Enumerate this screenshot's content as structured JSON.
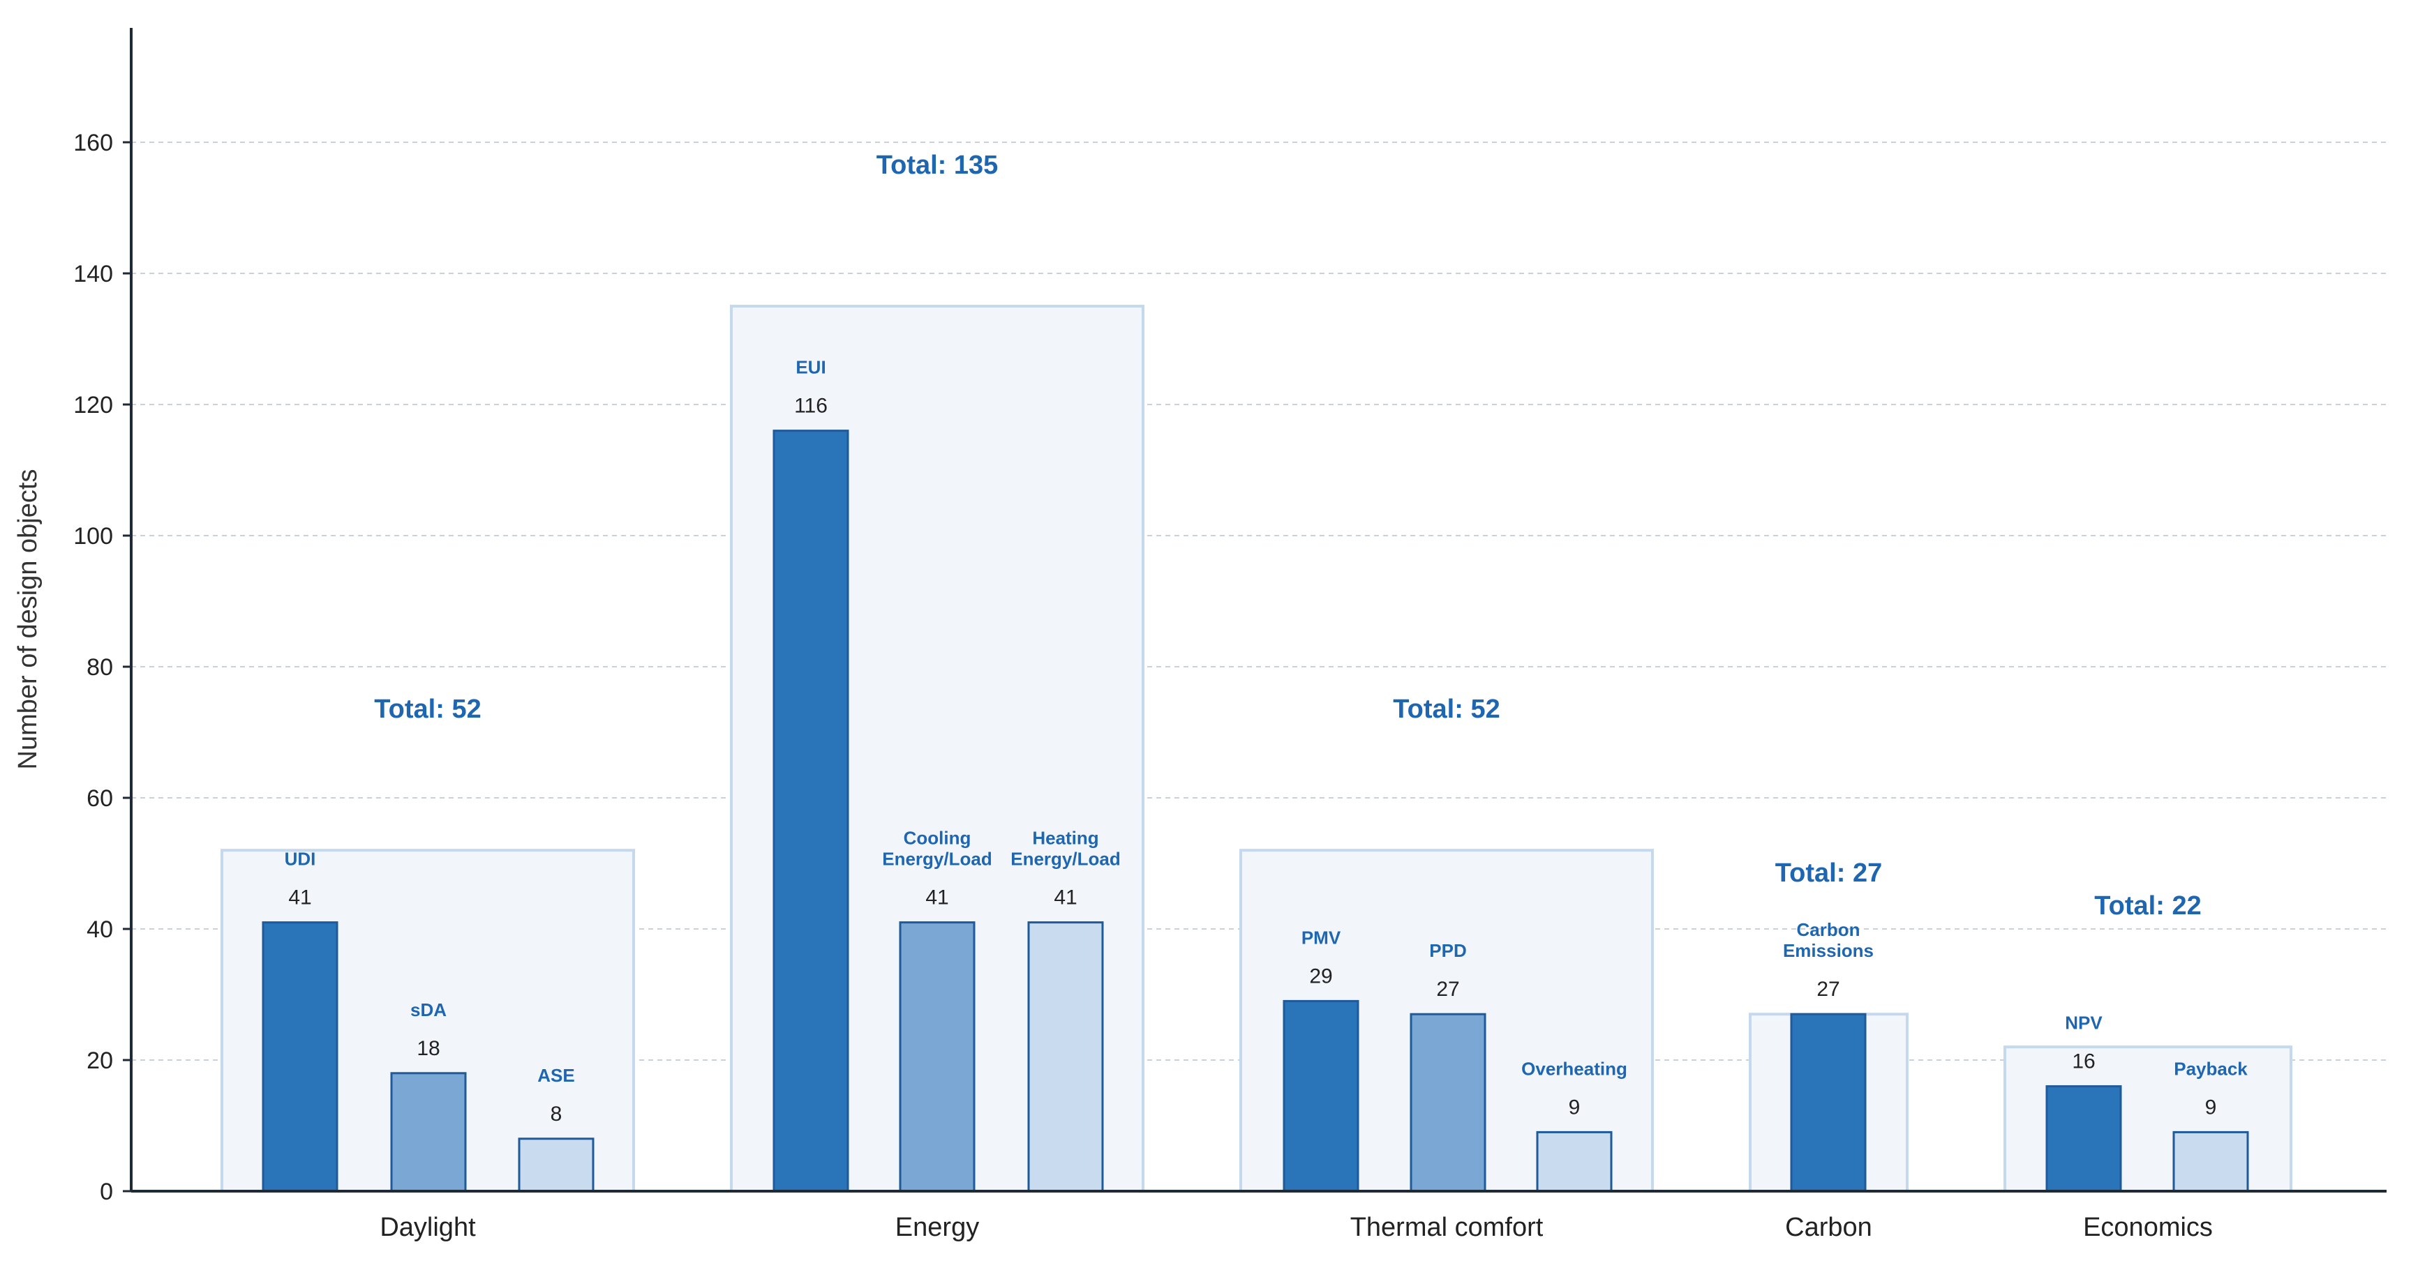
{
  "colors": {
    "accent": "#1f66b0",
    "bar_dark": "#2a74ba",
    "bar_mid": "#7ba7d4",
    "bar_light": "#c8dbef",
    "bar_stroke": "#1f5a9a",
    "group_fill": "#f2f6fb",
    "group_stroke": "#c5d9ee",
    "grid": "#c9d1da",
    "axis": "#1e2a36"
  },
  "chart_data": {
    "type": "bar",
    "title": "",
    "xlabel": "",
    "ylabel": "Number of design objects",
    "ylim": [
      0,
      180
    ],
    "yticks": [
      0,
      20,
      40,
      60,
      80,
      100,
      120,
      140,
      160
    ],
    "grid": true,
    "groups": [
      {
        "category": "Daylight",
        "total_label": "Total: 52",
        "total": 52,
        "bars": [
          {
            "name": "UDI",
            "value": 41,
            "value_label": "41",
            "shade": "dark"
          },
          {
            "name": "sDA",
            "value": 18,
            "value_label": "18",
            "shade": "mid"
          },
          {
            "name": "ASE",
            "value": 8,
            "value_label": "8",
            "shade": "light"
          }
        ]
      },
      {
        "category": "Energy",
        "total_label": "Total: 135",
        "total": 135,
        "bars": [
          {
            "name": "EUI",
            "value": 116,
            "value_label": "116",
            "shade": "dark"
          },
          {
            "name": "Cooling\nEnergy/Load",
            "value": 41,
            "value_label": "41",
            "shade": "mid"
          },
          {
            "name": "Heating\nEnergy/Load",
            "value": 41,
            "value_label": "41",
            "shade": "light"
          }
        ]
      },
      {
        "category": "Thermal comfort",
        "total_label": "Total: 52",
        "total": 52,
        "bars": [
          {
            "name": "PMV",
            "value": 29,
            "value_label": "29",
            "shade": "dark"
          },
          {
            "name": "PPD",
            "value": 27,
            "value_label": "27",
            "shade": "mid"
          },
          {
            "name": "Overheating",
            "value": 9,
            "value_label": "9",
            "shade": "light"
          }
        ]
      },
      {
        "category": "Carbon",
        "total_label": "Total: 27",
        "total": 27,
        "bars": [
          {
            "name": "Carbon\nEmissions",
            "value": 27,
            "value_label": "27",
            "shade": "dark"
          }
        ]
      },
      {
        "category": "Economics",
        "total_label": "Total: 22",
        "total": 22,
        "bars": [
          {
            "name": "NPV",
            "value": 16,
            "value_label": "16",
            "shade": "dark"
          },
          {
            "name": "Payback",
            "value": 9,
            "value_label": "9",
            "shade": "light"
          }
        ]
      }
    ]
  }
}
